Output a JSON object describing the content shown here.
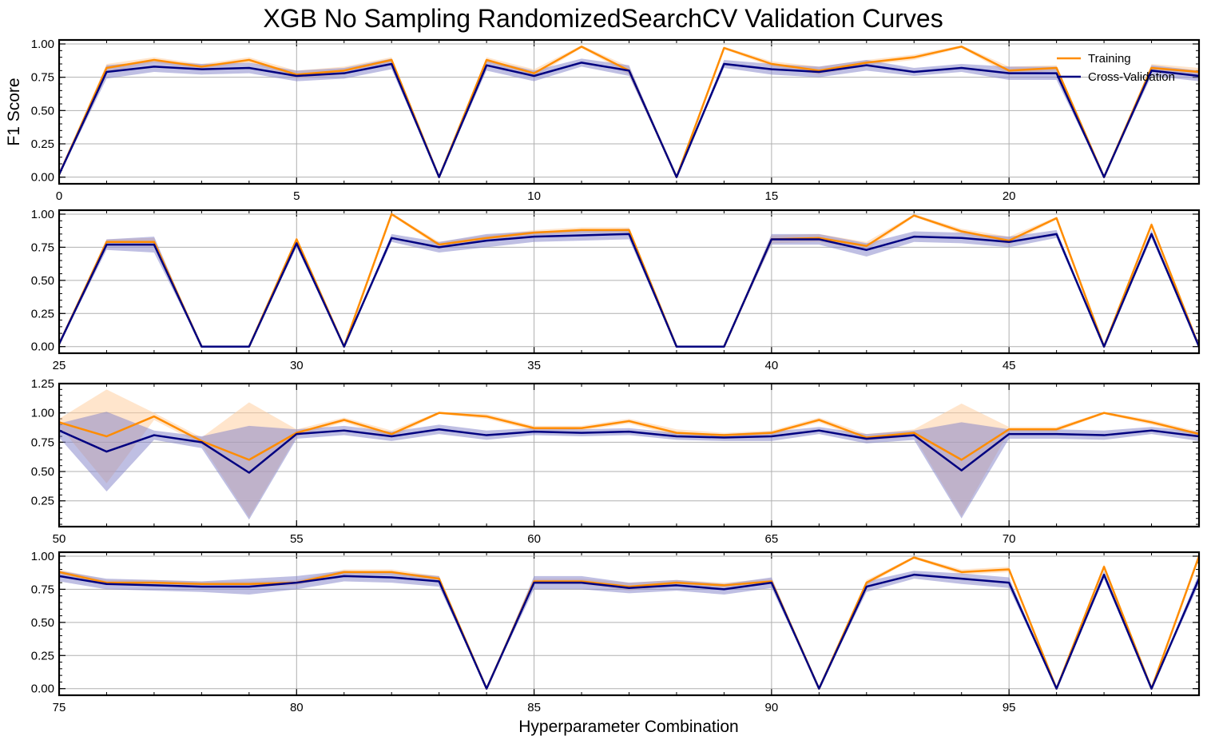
{
  "chart_data": {
    "type": "line",
    "title": "XGB No Sampling RandomizedSearchCV Validation Curves",
    "xlabel": "Hyperparameter Combination",
    "ylabel": "F1 Score",
    "grid": true,
    "legend": {
      "position": "top-right",
      "entries": [
        "Training",
        "Cross-Validation"
      ]
    },
    "colors": {
      "training": "#ff8c00",
      "cross_validation": "#000080",
      "training_band": "#ffcc99",
      "cv_band": "#8080c8"
    },
    "panels": [
      {
        "xlim": [
          0,
          24
        ],
        "xticks": [
          0,
          5,
          10,
          15,
          20
        ],
        "ylim": [
          -0.05,
          1.03
        ],
        "yticks": [
          "0.00",
          "0.25",
          "0.50",
          "0.75",
          "1.00"
        ],
        "x": [
          0,
          1,
          2,
          3,
          4,
          5,
          6,
          7,
          8,
          9,
          10,
          11,
          12,
          13,
          14,
          15,
          16,
          17,
          18,
          19,
          20,
          21,
          22,
          23,
          24
        ],
        "training": [
          0.02,
          0.82,
          0.88,
          0.83,
          0.88,
          0.77,
          0.8,
          0.88,
          0.0,
          0.88,
          0.78,
          0.98,
          0.8,
          0.0,
          0.97,
          0.85,
          0.8,
          0.86,
          0.9,
          0.98,
          0.8,
          0.82,
          0.0,
          0.82,
          0.79
        ],
        "training_std": [
          0.01,
          0.03,
          0.02,
          0.02,
          0.02,
          0.03,
          0.03,
          0.02,
          0.0,
          0.02,
          0.03,
          0.01,
          0.03,
          0.0,
          0.01,
          0.02,
          0.03,
          0.02,
          0.02,
          0.01,
          0.03,
          0.02,
          0.0,
          0.03,
          0.03
        ],
        "cv": [
          0.02,
          0.79,
          0.83,
          0.81,
          0.82,
          0.76,
          0.78,
          0.85,
          0.0,
          0.84,
          0.76,
          0.86,
          0.8,
          0.0,
          0.85,
          0.81,
          0.79,
          0.84,
          0.79,
          0.82,
          0.78,
          0.78,
          0.0,
          0.8,
          0.76
        ],
        "cv_std": [
          0.01,
          0.05,
          0.04,
          0.04,
          0.04,
          0.04,
          0.04,
          0.04,
          0.0,
          0.04,
          0.04,
          0.03,
          0.04,
          0.0,
          0.03,
          0.04,
          0.04,
          0.04,
          0.03,
          0.03,
          0.05,
          0.05,
          0.0,
          0.04,
          0.04
        ]
      },
      {
        "xlim": [
          25,
          49
        ],
        "xticks": [
          25,
          30,
          35,
          40,
          45
        ],
        "ylim": [
          -0.05,
          1.03
        ],
        "yticks": [
          "0.00",
          "0.25",
          "0.50",
          "0.75",
          "1.00"
        ],
        "x": [
          25,
          26,
          27,
          28,
          29,
          30,
          31,
          32,
          33,
          34,
          35,
          36,
          37,
          38,
          39,
          40,
          41,
          42,
          43,
          44,
          45,
          46,
          47,
          48,
          49
        ],
        "training": [
          0.02,
          0.79,
          0.79,
          0.0,
          0.0,
          0.81,
          0.0,
          1.0,
          0.77,
          0.82,
          0.86,
          0.88,
          0.88,
          0.0,
          0.0,
          0.81,
          0.82,
          0.76,
          0.99,
          0.87,
          0.8,
          0.97,
          0.0,
          0.92,
          0.0
        ],
        "training_std": [
          0.01,
          0.02,
          0.03,
          0.0,
          0.0,
          0.02,
          0.0,
          0.01,
          0.02,
          0.02,
          0.02,
          0.02,
          0.02,
          0.0,
          0.0,
          0.03,
          0.03,
          0.03,
          0.01,
          0.02,
          0.03,
          0.01,
          0.0,
          0.02,
          0.0
        ],
        "cv": [
          0.02,
          0.77,
          0.77,
          0.0,
          0.0,
          0.78,
          0.0,
          0.82,
          0.75,
          0.8,
          0.83,
          0.84,
          0.85,
          0.0,
          0.0,
          0.81,
          0.81,
          0.73,
          0.83,
          0.82,
          0.79,
          0.85,
          0.0,
          0.85,
          0.0
        ],
        "cv_std": [
          0.01,
          0.04,
          0.06,
          0.0,
          0.0,
          0.03,
          0.0,
          0.03,
          0.04,
          0.05,
          0.04,
          0.04,
          0.04,
          0.0,
          0.0,
          0.04,
          0.04,
          0.05,
          0.04,
          0.04,
          0.04,
          0.03,
          0.0,
          0.03,
          0.0
        ]
      },
      {
        "xlim": [
          50,
          74
        ],
        "xticks": [
          50,
          55,
          60,
          65,
          70
        ],
        "ylim": [
          0.03,
          1.25
        ],
        "yticks": [
          "0.25",
          "0.50",
          "0.75",
          "1.00",
          "1.25"
        ],
        "x": [
          50,
          51,
          52,
          53,
          54,
          55,
          56,
          57,
          58,
          59,
          60,
          61,
          62,
          63,
          64,
          65,
          66,
          67,
          68,
          69,
          70,
          71,
          72,
          73,
          74
        ],
        "training": [
          0.92,
          0.8,
          0.97,
          0.76,
          0.6,
          0.83,
          0.94,
          0.82,
          1.0,
          0.97,
          0.87,
          0.87,
          0.93,
          0.83,
          0.81,
          0.83,
          0.94,
          0.79,
          0.83,
          0.6,
          0.86,
          0.86,
          1.0,
          0.92,
          0.82
        ],
        "training_std": [
          0.03,
          0.4,
          0.03,
          0.03,
          0.49,
          0.03,
          0.02,
          0.03,
          0.01,
          0.02,
          0.02,
          0.02,
          0.02,
          0.03,
          0.02,
          0.02,
          0.02,
          0.03,
          0.03,
          0.48,
          0.02,
          0.02,
          0.01,
          0.02,
          0.02
        ],
        "cv": [
          0.85,
          0.67,
          0.81,
          0.75,
          0.49,
          0.82,
          0.85,
          0.8,
          0.86,
          0.81,
          0.84,
          0.83,
          0.84,
          0.8,
          0.79,
          0.8,
          0.85,
          0.78,
          0.81,
          0.51,
          0.82,
          0.82,
          0.81,
          0.85,
          0.8
        ],
        "cv_std": [
          0.06,
          0.34,
          0.04,
          0.05,
          0.4,
          0.04,
          0.04,
          0.04,
          0.04,
          0.04,
          0.03,
          0.03,
          0.03,
          0.03,
          0.03,
          0.04,
          0.03,
          0.04,
          0.04,
          0.41,
          0.04,
          0.04,
          0.04,
          0.03,
          0.04
        ]
      },
      {
        "xlim": [
          75,
          99
        ],
        "xticks": [
          75,
          80,
          85,
          90,
          95
        ],
        "ylim": [
          -0.05,
          1.03
        ],
        "yticks": [
          "0.00",
          "0.25",
          "0.50",
          "0.75",
          "1.00"
        ],
        "x": [
          75,
          76,
          77,
          78,
          79,
          80,
          81,
          82,
          83,
          84,
          85,
          86,
          87,
          88,
          89,
          90,
          91,
          92,
          93,
          94,
          95,
          96,
          97,
          98,
          99
        ],
        "training": [
          0.88,
          0.8,
          0.8,
          0.79,
          0.79,
          0.8,
          0.88,
          0.88,
          0.83,
          0.0,
          0.81,
          0.81,
          0.77,
          0.8,
          0.78,
          0.81,
          0.0,
          0.8,
          0.99,
          0.88,
          0.9,
          0.0,
          0.92,
          0.0,
          1.0
        ],
        "training_std": [
          0.02,
          0.02,
          0.02,
          0.02,
          0.02,
          0.02,
          0.02,
          0.02,
          0.02,
          0.0,
          0.02,
          0.02,
          0.03,
          0.02,
          0.02,
          0.02,
          0.0,
          0.02,
          0.01,
          0.02,
          0.02,
          0.0,
          0.02,
          0.0,
          0.0
        ],
        "cv": [
          0.85,
          0.79,
          0.78,
          0.77,
          0.77,
          0.8,
          0.85,
          0.84,
          0.81,
          0.0,
          0.8,
          0.8,
          0.76,
          0.78,
          0.75,
          0.8,
          0.0,
          0.77,
          0.86,
          0.83,
          0.8,
          0.0,
          0.86,
          0.0,
          0.83
        ],
        "cv_std": [
          0.04,
          0.04,
          0.04,
          0.04,
          0.06,
          0.05,
          0.04,
          0.04,
          0.04,
          0.0,
          0.05,
          0.05,
          0.04,
          0.04,
          0.04,
          0.04,
          0.0,
          0.04,
          0.03,
          0.04,
          0.04,
          0.0,
          0.03,
          0.0,
          0.04
        ]
      }
    ]
  }
}
